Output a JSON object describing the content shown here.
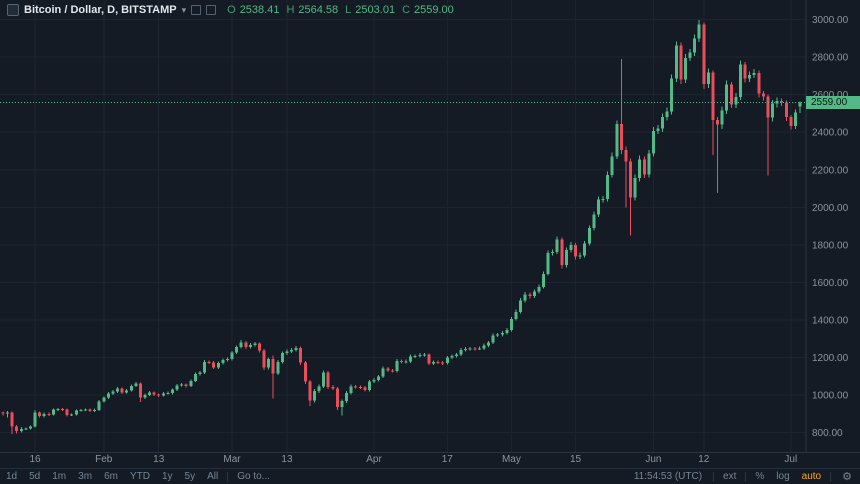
{
  "header": {
    "symbol_title": "Bitcoin / Dollar, D, BITSTAMP",
    "ohlc": {
      "o_label": "O",
      "o": "2538.41",
      "h_label": "H",
      "h": "2564.58",
      "l_label": "L",
      "l": "2503.01",
      "c_label": "C",
      "c": "2559.00"
    }
  },
  "icons": {
    "caret": "▾",
    "gear": "⚙"
  },
  "price_scale": {
    "current_price_label": "2559.00"
  },
  "toolbar": {
    "ranges": [
      "1d",
      "5d",
      "1m",
      "3m",
      "6m",
      "YTD",
      "1y",
      "5y",
      "All"
    ],
    "goto_label": "Go to...",
    "clock": "11:54:53 (UTC)",
    "ext_label": "ext",
    "percent_label": "%",
    "log_label": "log",
    "auto_label": "auto"
  },
  "colors": {
    "background": "#141b24",
    "grid": "#1b2431",
    "axis_border": "#2a3442",
    "axis_text": "#8d949e",
    "up": "#53b987",
    "down": "#eb4d5c",
    "toolbar_text": "#758696",
    "auto_accent": "#f6a821",
    "price_tag_text": "#0c1a12"
  },
  "chart_data": {
    "type": "candlestick",
    "symbol": "Bitcoin / Dollar",
    "exchange": "BITSTAMP",
    "interval": "D",
    "start_date": "2017-01-09",
    "ylim": [
      690,
      3105
    ],
    "current_price": 2559.0,
    "y_ticks": [
      {
        "v": 3000,
        "label": "3000.00"
      },
      {
        "v": 2800,
        "label": "2800.00"
      },
      {
        "v": 2600,
        "label": "2600.00"
      },
      {
        "v": 2400,
        "label": "2400.00"
      },
      {
        "v": 2200,
        "label": "2200.00"
      },
      {
        "v": 2000,
        "label": "2000.00"
      },
      {
        "v": 1800,
        "label": "1800.00"
      },
      {
        "v": 1600,
        "label": "1600.00"
      },
      {
        "v": 1400,
        "label": "1400.00"
      },
      {
        "v": 1200,
        "label": "1200.00"
      },
      {
        "v": 1000,
        "label": "1000.00"
      },
      {
        "v": 800,
        "label": "800.00"
      }
    ],
    "x_ticks": [
      {
        "label": "16",
        "i": 7
      },
      {
        "label": "Feb",
        "i": 22
      },
      {
        "label": "13",
        "i": 34
      },
      {
        "label": "Mar",
        "i": 50
      },
      {
        "label": "13",
        "i": 62
      },
      {
        "label": "Apr",
        "i": 81
      },
      {
        "label": "17",
        "i": 97
      },
      {
        "label": "May",
        "i": 111
      },
      {
        "label": "15",
        "i": 125
      },
      {
        "label": "Jun",
        "i": 142
      },
      {
        "label": "12",
        "i": 153
      },
      {
        "label": "Jul",
        "i": 172
      }
    ],
    "candles": [
      [
        905,
        912,
        890,
        902
      ],
      [
        902,
        914,
        880,
        905
      ],
      [
        905,
        910,
        790,
        830
      ],
      [
        830,
        838,
        795,
        808
      ],
      [
        808,
        828,
        800,
        818
      ],
      [
        818,
        827,
        812,
        821
      ],
      [
        821,
        837,
        816,
        831
      ],
      [
        831,
        918,
        826,
        907
      ],
      [
        907,
        912,
        878,
        886
      ],
      [
        886,
        905,
        880,
        899
      ],
      [
        899,
        906,
        888,
        895
      ],
      [
        895,
        927,
        890,
        921
      ],
      [
        921,
        930,
        915,
        924
      ],
      [
        924,
        931,
        914,
        921
      ],
      [
        921,
        926,
        885,
        892
      ],
      [
        892,
        901,
        886,
        894
      ],
      [
        894,
        922,
        889,
        916
      ],
      [
        916,
        925,
        910,
        919
      ],
      [
        919,
        927,
        913,
        921
      ],
      [
        921,
        926,
        908,
        915
      ],
      [
        915,
        926,
        909,
        920
      ],
      [
        920,
        972,
        914,
        965
      ],
      [
        965,
        992,
        958,
        985
      ],
      [
        985,
        1014,
        979,
        1007
      ],
      [
        1007,
        1026,
        1000,
        1018
      ],
      [
        1018,
        1041,
        1011,
        1033
      ],
      [
        1033,
        1039,
        1005,
        1013
      ],
      [
        1013,
        1032,
        1006,
        1024
      ],
      [
        1024,
        1056,
        1017,
        1048
      ],
      [
        1048,
        1068,
        1041,
        1060
      ],
      [
        1060,
        1066,
        962,
        986
      ],
      [
        986,
        1008,
        978,
        1000
      ],
      [
        1000,
        1021,
        993,
        1013
      ],
      [
        1013,
        1019,
        993,
        1001
      ],
      [
        1001,
        1007,
        989,
        997
      ],
      [
        997,
        1015,
        990,
        1008
      ],
      [
        1008,
        1017,
        1002,
        1010
      ],
      [
        1010,
        1035,
        1003,
        1028
      ],
      [
        1028,
        1058,
        1021,
        1050
      ],
      [
        1050,
        1062,
        1044,
        1054
      ],
      [
        1054,
        1061,
        1040,
        1048
      ],
      [
        1048,
        1083,
        1041,
        1075
      ],
      [
        1075,
        1119,
        1068,
        1110
      ],
      [
        1110,
        1127,
        1102,
        1118
      ],
      [
        1118,
        1185,
        1111,
        1175
      ],
      [
        1175,
        1183,
        1164,
        1173
      ],
      [
        1173,
        1180,
        1138,
        1147
      ],
      [
        1147,
        1178,
        1139,
        1170
      ],
      [
        1170,
        1194,
        1162,
        1185
      ],
      [
        1185,
        1199,
        1177,
        1190
      ],
      [
        1190,
        1234,
        1183,
        1225
      ],
      [
        1225,
        1264,
        1217,
        1255
      ],
      [
        1255,
        1292,
        1247,
        1280
      ],
      [
        1280,
        1288,
        1245,
        1255
      ],
      [
        1255,
        1276,
        1246,
        1267
      ],
      [
        1267,
        1282,
        1258,
        1273
      ],
      [
        1273,
        1280,
        1227,
        1237
      ],
      [
        1237,
        1244,
        1132,
        1145
      ],
      [
        1145,
        1200,
        1136,
        1190
      ],
      [
        1190,
        1210,
        980,
        1115
      ],
      [
        1115,
        1186,
        1105,
        1176
      ],
      [
        1176,
        1232,
        1167,
        1222
      ],
      [
        1222,
        1242,
        1212,
        1232
      ],
      [
        1232,
        1250,
        1222,
        1240
      ],
      [
        1240,
        1260,
        1230,
        1250
      ],
      [
        1250,
        1257,
        1160,
        1172
      ],
      [
        1172,
        1180,
        1058,
        1071
      ],
      [
        1071,
        1078,
        940,
        971
      ],
      [
        971,
        1030,
        960,
        1020
      ],
      [
        1020,
        1055,
        1010,
        1045
      ],
      [
        1045,
        1130,
        1036,
        1120
      ],
      [
        1120,
        1127,
        1031,
        1043
      ],
      [
        1043,
        1052,
        1025,
        1035
      ],
      [
        1035,
        1042,
        920,
        935
      ],
      [
        935,
        976,
        890,
        966
      ],
      [
        966,
        1020,
        957,
        1010
      ],
      [
        1010,
        1055,
        1001,
        1045
      ],
      [
        1045,
        1053,
        1033,
        1042
      ],
      [
        1042,
        1050,
        1031,
        1040
      ],
      [
        1040,
        1047,
        1017,
        1027
      ],
      [
        1027,
        1080,
        1019,
        1071
      ],
      [
        1071,
        1089,
        1063,
        1080
      ],
      [
        1080,
        1106,
        1072,
        1097
      ],
      [
        1097,
        1151,
        1089,
        1141
      ],
      [
        1141,
        1149,
        1122,
        1131
      ],
      [
        1131,
        1139,
        1119,
        1128
      ],
      [
        1128,
        1190,
        1120,
        1180
      ],
      [
        1180,
        1188,
        1166,
        1175
      ],
      [
        1175,
        1188,
        1167,
        1179
      ],
      [
        1179,
        1214,
        1171,
        1204
      ],
      [
        1204,
        1215,
        1196,
        1206
      ],
      [
        1206,
        1222,
        1198,
        1213
      ],
      [
        1213,
        1223,
        1205,
        1214
      ],
      [
        1214,
        1221,
        1158,
        1168
      ],
      [
        1168,
        1184,
        1160,
        1175
      ],
      [
        1175,
        1183,
        1165,
        1173
      ],
      [
        1173,
        1181,
        1160,
        1169
      ],
      [
        1169,
        1208,
        1161,
        1198
      ],
      [
        1198,
        1215,
        1190,
        1206
      ],
      [
        1206,
        1223,
        1198,
        1214
      ],
      [
        1214,
        1249,
        1206,
        1240
      ],
      [
        1240,
        1254,
        1232,
        1245
      ],
      [
        1245,
        1256,
        1237,
        1247
      ],
      [
        1247,
        1255,
        1236,
        1245
      ],
      [
        1245,
        1257,
        1238,
        1248
      ],
      [
        1248,
        1273,
        1240,
        1264
      ],
      [
        1264,
        1288,
        1255,
        1278
      ],
      [
        1278,
        1327,
        1270,
        1317
      ],
      [
        1317,
        1331,
        1308,
        1321
      ],
      [
        1321,
        1341,
        1312,
        1331
      ],
      [
        1331,
        1357,
        1322,
        1347
      ],
      [
        1347,
        1416,
        1339,
        1405
      ],
      [
        1405,
        1455,
        1396,
        1443
      ],
      [
        1443,
        1515,
        1434,
        1503
      ],
      [
        1503,
        1549,
        1493,
        1536
      ],
      [
        1536,
        1545,
        1514,
        1526
      ],
      [
        1526,
        1562,
        1516,
        1550
      ],
      [
        1550,
        1588,
        1540,
        1575
      ],
      [
        1575,
        1658,
        1566,
        1645
      ],
      [
        1645,
        1770,
        1636,
        1755
      ],
      [
        1755,
        1775,
        1743,
        1761
      ],
      [
        1761,
        1843,
        1750,
        1828
      ],
      [
        1828,
        1838,
        1673,
        1691
      ],
      [
        1691,
        1785,
        1680,
        1771
      ],
      [
        1771,
        1815,
        1758,
        1800
      ],
      [
        1800,
        1810,
        1722,
        1737
      ],
      [
        1737,
        1758,
        1725,
        1744
      ],
      [
        1744,
        1821,
        1733,
        1807
      ],
      [
        1807,
        1904,
        1795,
        1889
      ],
      [
        1889,
        1977,
        1877,
        1961
      ],
      [
        1961,
        2058,
        1948,
        2041
      ],
      [
        2041,
        2060,
        2025,
        2043
      ],
      [
        2043,
        2191,
        2030,
        2173
      ],
      [
        2173,
        2291,
        2158,
        2272
      ],
      [
        2272,
        2463,
        2258,
        2443
      ],
      [
        2443,
        2790,
        2285,
        2305
      ],
      [
        2305,
        2325,
        2000,
        2245
      ],
      [
        2245,
        2260,
        1850,
        2052
      ],
      [
        2052,
        2175,
        2035,
        2155
      ],
      [
        2155,
        2275,
        2138,
        2255
      ],
      [
        2255,
        2270,
        2155,
        2175
      ],
      [
        2175,
        2305,
        2160,
        2286
      ],
      [
        2286,
        2427,
        2270,
        2407
      ],
      [
        2407,
        2438,
        2390,
        2419
      ],
      [
        2419,
        2500,
        2402,
        2480
      ],
      [
        2480,
        2531,
        2462,
        2511
      ],
      [
        2511,
        2708,
        2495,
        2686
      ],
      [
        2686,
        2885,
        2668,
        2863
      ],
      [
        2863,
        2878,
        2658,
        2680
      ],
      [
        2680,
        2818,
        2662,
        2797
      ],
      [
        2797,
        2845,
        2780,
        2824
      ],
      [
        2824,
        2922,
        2806,
        2900
      ],
      [
        2900,
        2999,
        2882,
        2974
      ],
      [
        2974,
        2985,
        2630,
        2656
      ],
      [
        2656,
        2740,
        2636,
        2718
      ],
      [
        2718,
        2730,
        2280,
        2465
      ],
      [
        2465,
        2482,
        2076,
        2440
      ],
      [
        2440,
        2536,
        2418,
        2516
      ],
      [
        2516,
        2676,
        2498,
        2655
      ],
      [
        2655,
        2668,
        2528,
        2548
      ],
      [
        2548,
        2608,
        2530,
        2589
      ],
      [
        2589,
        2782,
        2572,
        2761
      ],
      [
        2761,
        2774,
        2665,
        2687
      ],
      [
        2687,
        2724,
        2668,
        2705
      ],
      [
        2705,
        2736,
        2688,
        2717
      ],
      [
        2717,
        2728,
        2586,
        2606
      ],
      [
        2606,
        2620,
        2570,
        2590
      ],
      [
        2590,
        2600,
        2170,
        2478
      ],
      [
        2478,
        2572,
        2458,
        2552
      ],
      [
        2552,
        2585,
        2532,
        2567
      ],
      [
        2567,
        2580,
        2540,
        2559
      ],
      [
        2559,
        2570,
        2460,
        2480
      ],
      [
        2480,
        2492,
        2414,
        2434
      ],
      [
        2434,
        2520,
        2418,
        2506
      ],
      [
        2538.41,
        2564.58,
        2503.01,
        2559.0
      ]
    ]
  }
}
